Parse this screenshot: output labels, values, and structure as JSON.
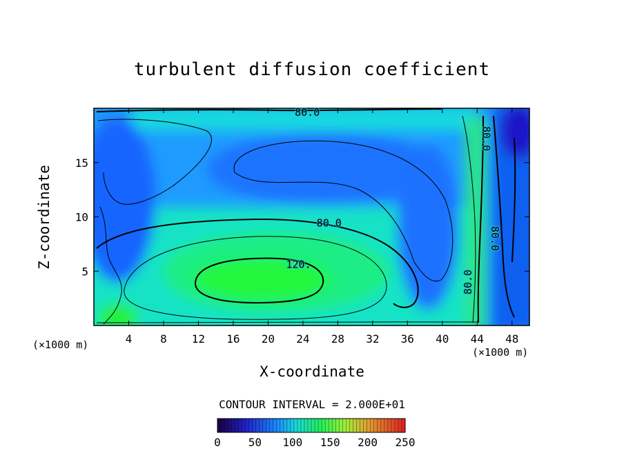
{
  "chart_data": {
    "type": "heatmap",
    "title": "turbulent diffusion coefficient",
    "xlabel": "X-coordinate",
    "ylabel": "Z-coordinate",
    "x_unit": "(×1000 m)",
    "y_unit": "(×1000 m)",
    "xlim": [
      0,
      50
    ],
    "ylim": [
      0,
      20
    ],
    "x_ticks": [
      4,
      8,
      12,
      16,
      20,
      24,
      28,
      32,
      36,
      40,
      44,
      48
    ],
    "y_ticks": [
      5,
      10,
      15
    ],
    "contour_interval_text": "CONTOUR INTERVAL = 2.000E+01",
    "contour_labels": [
      {
        "text": "80.0",
        "x": 24.5,
        "y": 19.6
      },
      {
        "text": "80.0",
        "x": 27.0,
        "y": 9.4
      },
      {
        "text": "120.",
        "x": 23.5,
        "y": 5.6
      },
      {
        "text": "80.0",
        "x": 45.0,
        "y": 17.2
      },
      {
        "text": "80.0",
        "x": 46.0,
        "y": 8.0
      },
      {
        "text": "80.0",
        "x": 43.0,
        "y": 4.0
      }
    ],
    "colorbar": {
      "ticks": [
        0,
        50,
        100,
        150,
        200,
        250
      ],
      "range": [
        0,
        250
      ],
      "colormap": "rainbow (dark blue → green → red)"
    },
    "features": {
      "maximum_center": {
        "x": 18,
        "z": 4,
        "value": 130
      },
      "low_regions": [
        "upper-right corner",
        "upper-left near top",
        "left edge"
      ]
    }
  }
}
